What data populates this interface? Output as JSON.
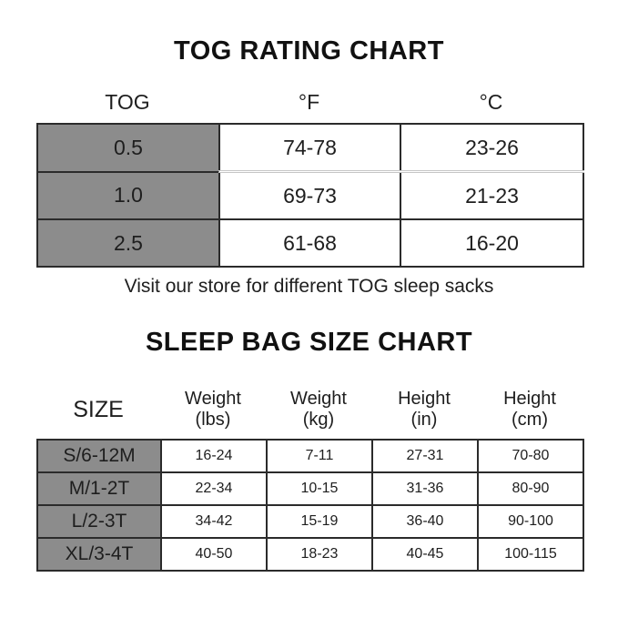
{
  "colors": {
    "background": "#ffffff",
    "header_column_gray": "#8c8c8c",
    "border_dark": "#2b2b2b",
    "border_light_divider": "#c6c6c6",
    "text": "#1e1e1e"
  },
  "chart_data": [
    {
      "type": "table",
      "title": "TOG RATING CHART",
      "columns": [
        "TOG",
        "°F",
        "°C"
      ],
      "rows": [
        [
          "0.5",
          "74-78",
          "23-26"
        ],
        [
          "1.0",
          "69-73",
          "21-23"
        ],
        [
          "2.5",
          "61-68",
          "16-20"
        ]
      ],
      "note": "Visit our store for different TOG sleep sacks",
      "layout": "column headers outside bordered grid; first column gray-filled"
    },
    {
      "type": "table",
      "title": "SLEEP BAG SIZE CHART",
      "columns": [
        "SIZE",
        "Weight (lbs)",
        "Weight (kg)",
        "Height (in)",
        "Height (cm)"
      ],
      "header_lines": [
        [
          "SIZE",
          ""
        ],
        [
          "Weight",
          "(lbs)"
        ],
        [
          "Weight",
          "(kg)"
        ],
        [
          "Height",
          "(in)"
        ],
        [
          "Height",
          "(cm)"
        ]
      ],
      "rows": [
        [
          "S/6-12M",
          "16-24",
          "7-11",
          "27-31",
          "70-80"
        ],
        [
          "M/1-2T",
          "22-34",
          "10-15",
          "31-36",
          "80-90"
        ],
        [
          "L/2-3T",
          "34-42",
          "15-19",
          "36-40",
          "90-100"
        ],
        [
          "XL/3-4T",
          "40-50",
          "18-23",
          "40-45",
          "100-115"
        ]
      ],
      "layout": "column headers outside bordered grid; first column gray-filled"
    }
  ]
}
